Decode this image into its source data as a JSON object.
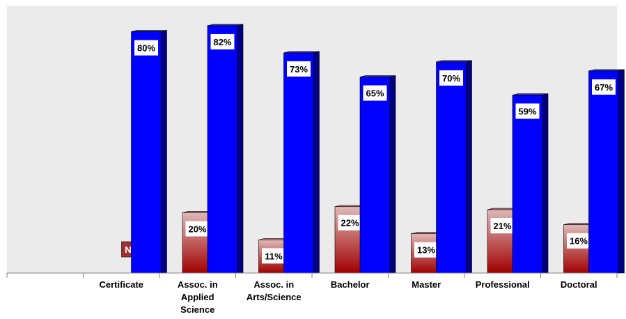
{
  "chart_data": {
    "type": "bar",
    "categories": [
      "",
      "Certificate",
      "Assoc. in\nApplied\nScience",
      "Assoc. in\nArts/Science",
      "Bachelor",
      "Master",
      "Professional",
      "Doctoral"
    ],
    "series": [
      {
        "values": [
          null,
          80,
          82,
          73,
          65,
          70,
          59,
          67
        ],
        "labels": [
          "",
          "80%",
          "82%",
          "73%",
          "65%",
          "70%",
          "59%",
          "67%"
        ],
        "color": "#0000ff"
      },
      {
        "values": [
          null,
          null,
          20,
          11,
          22,
          13,
          21,
          16
        ],
        "labels": [
          "",
          "N/A",
          "20%",
          "11%",
          "22%",
          "13%",
          "21%",
          "16%"
        ],
        "color": "#9e2a2a"
      }
    ],
    "ylim": [
      0,
      100
    ],
    "grid": false,
    "legend": "none",
    "background": "#ebebeb"
  }
}
